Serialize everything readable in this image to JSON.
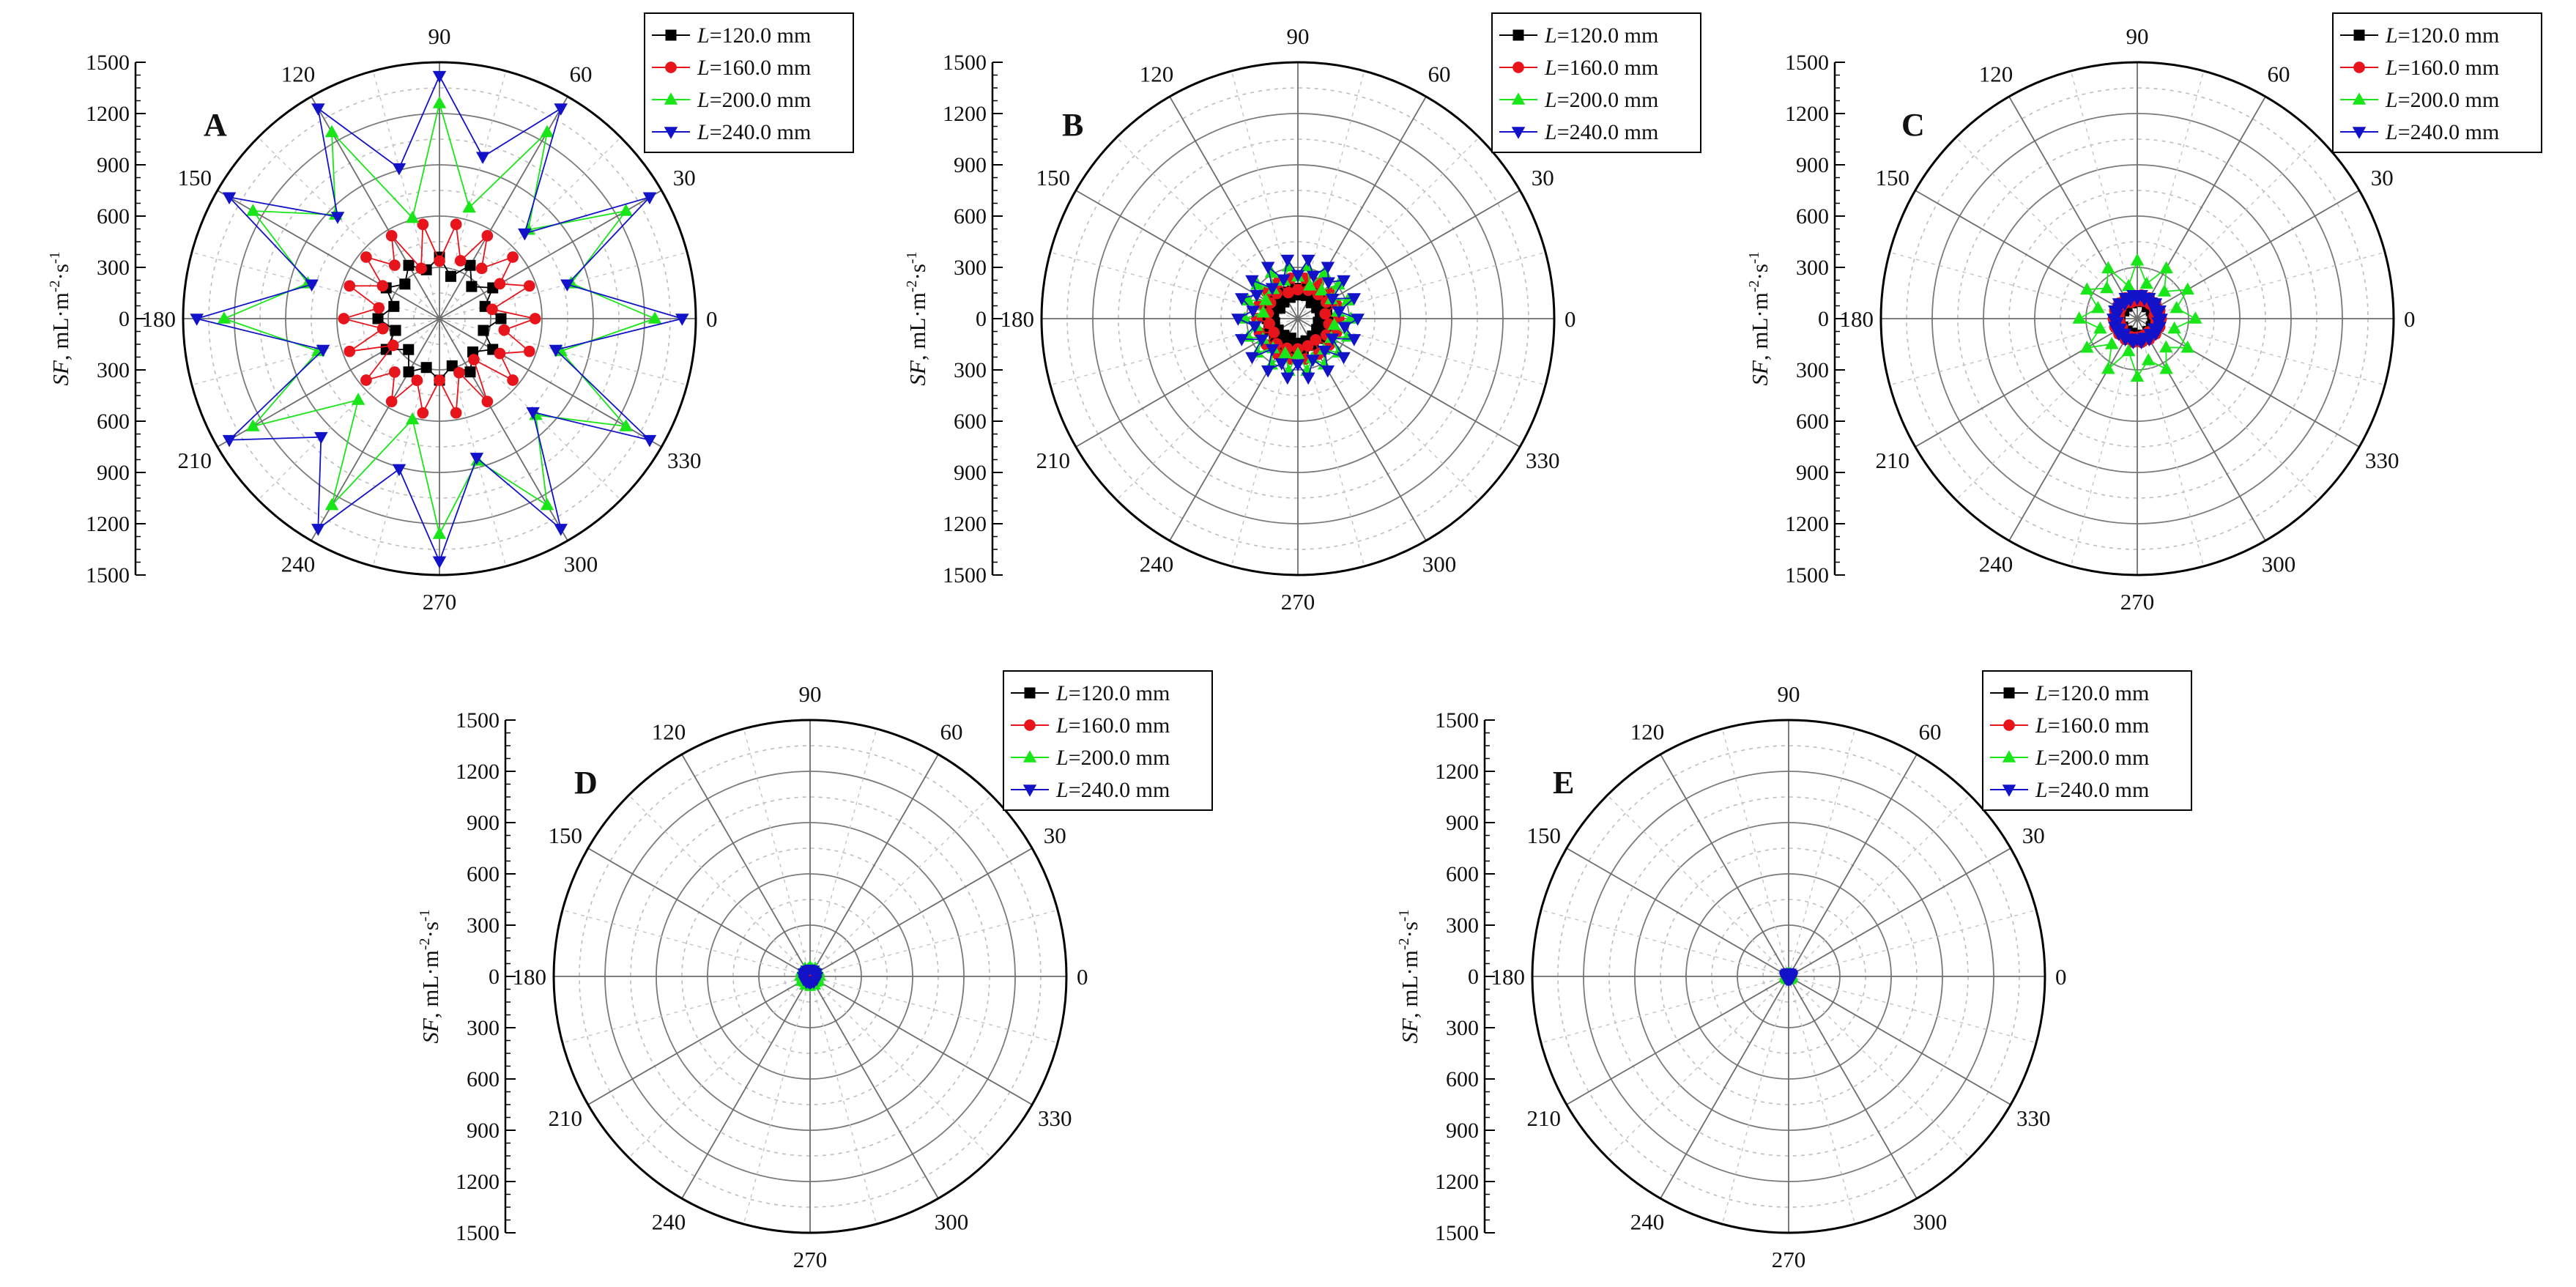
{
  "chart_data": {
    "type": "polar-scatter",
    "radial_axis": {
      "label_var": "SF",
      "label_unit": ", mL·m",
      "label_exp1": "-2",
      "label_mid": "·s",
      "label_exp2": "-1",
      "range": [
        0,
        1500
      ],
      "ticks_upper": [
        "1500",
        "1200",
        "900",
        "600",
        "300",
        "0"
      ],
      "ticks_lower": [
        "300",
        "600",
        "900",
        "1200",
        "1500"
      ]
    },
    "angle_labels": [
      "0",
      "30",
      "60",
      "90",
      "120",
      "150",
      "180",
      "210",
      "240",
      "270",
      "300",
      "330"
    ],
    "legend": [
      "L=120.0 mm",
      "L=160.0 mm",
      "L=200.0 mm",
      "L=240.0 mm"
    ],
    "legend_var": "L",
    "legend_values": [
      "=120.0 mm",
      "=160.0 mm",
      "=200.0 mm",
      "=240.0 mm"
    ],
    "series_colors": [
      "#000000",
      "#e8141b",
      "#19e619",
      "#1212c8"
    ],
    "panels": [
      {
        "label": "A",
        "series": [
          {
            "name": "L=120.0 mm",
            "base": 200,
            "amp": 160,
            "points": 24
          },
          {
            "name": "L=160.0 mm",
            "base": 180,
            "amp": 380,
            "points": 36
          },
          {
            "name": "L=200.0 mm",
            "base": 260,
            "amp": 1000,
            "points": 24
          },
          {
            "name": "L=240.0 mm",
            "base": 320,
            "amp": 1100,
            "points": 24
          }
        ]
      },
      {
        "label": "B",
        "series": [
          {
            "name": "L=120.0 mm",
            "base": 90,
            "amp": 90,
            "points": 36
          },
          {
            "name": "L=160.0 mm",
            "base": 120,
            "amp": 120,
            "points": 36
          },
          {
            "name": "L=200.0 mm",
            "base": 150,
            "amp": 160,
            "points": 36
          },
          {
            "name": "L=240.0 mm",
            "base": 170,
            "amp": 180,
            "points": 36
          }
        ]
      },
      {
        "label": "C",
        "series": [
          {
            "name": "L=120.0 mm",
            "base": 70,
            "amp": 60,
            "points": 36
          },
          {
            "name": "L=160.0 mm",
            "base": 80,
            "amp": 60,
            "points": 36
          },
          {
            "name": "L=200.0 mm",
            "base": 120,
            "amp": 220,
            "points": 24
          },
          {
            "name": "L=240.0 mm",
            "base": 100,
            "amp": 40,
            "points": 36
          }
        ]
      },
      {
        "label": "D",
        "series": [
          {
            "name": "L=120.0 mm",
            "base": 25,
            "amp": 10,
            "points": 24
          },
          {
            "name": "L=160.0 mm",
            "base": 28,
            "amp": 10,
            "points": 24
          },
          {
            "name": "L=200.0 mm",
            "base": 40,
            "amp": 20,
            "points": 24
          },
          {
            "name": "L=240.0 mm",
            "base": 32,
            "amp": 12,
            "points": 24
          }
        ]
      },
      {
        "label": "E",
        "series": [
          {
            "name": "L=120.0 mm",
            "base": 12,
            "amp": 4,
            "points": 24
          },
          {
            "name": "L=160.0 mm",
            "base": 14,
            "amp": 4,
            "points": 24
          },
          {
            "name": "L=200.0 mm",
            "base": 16,
            "amp": 5,
            "points": 24
          },
          {
            "name": "L=240.0 mm",
            "base": 18,
            "amp": 5,
            "points": 24
          }
        ]
      }
    ]
  }
}
